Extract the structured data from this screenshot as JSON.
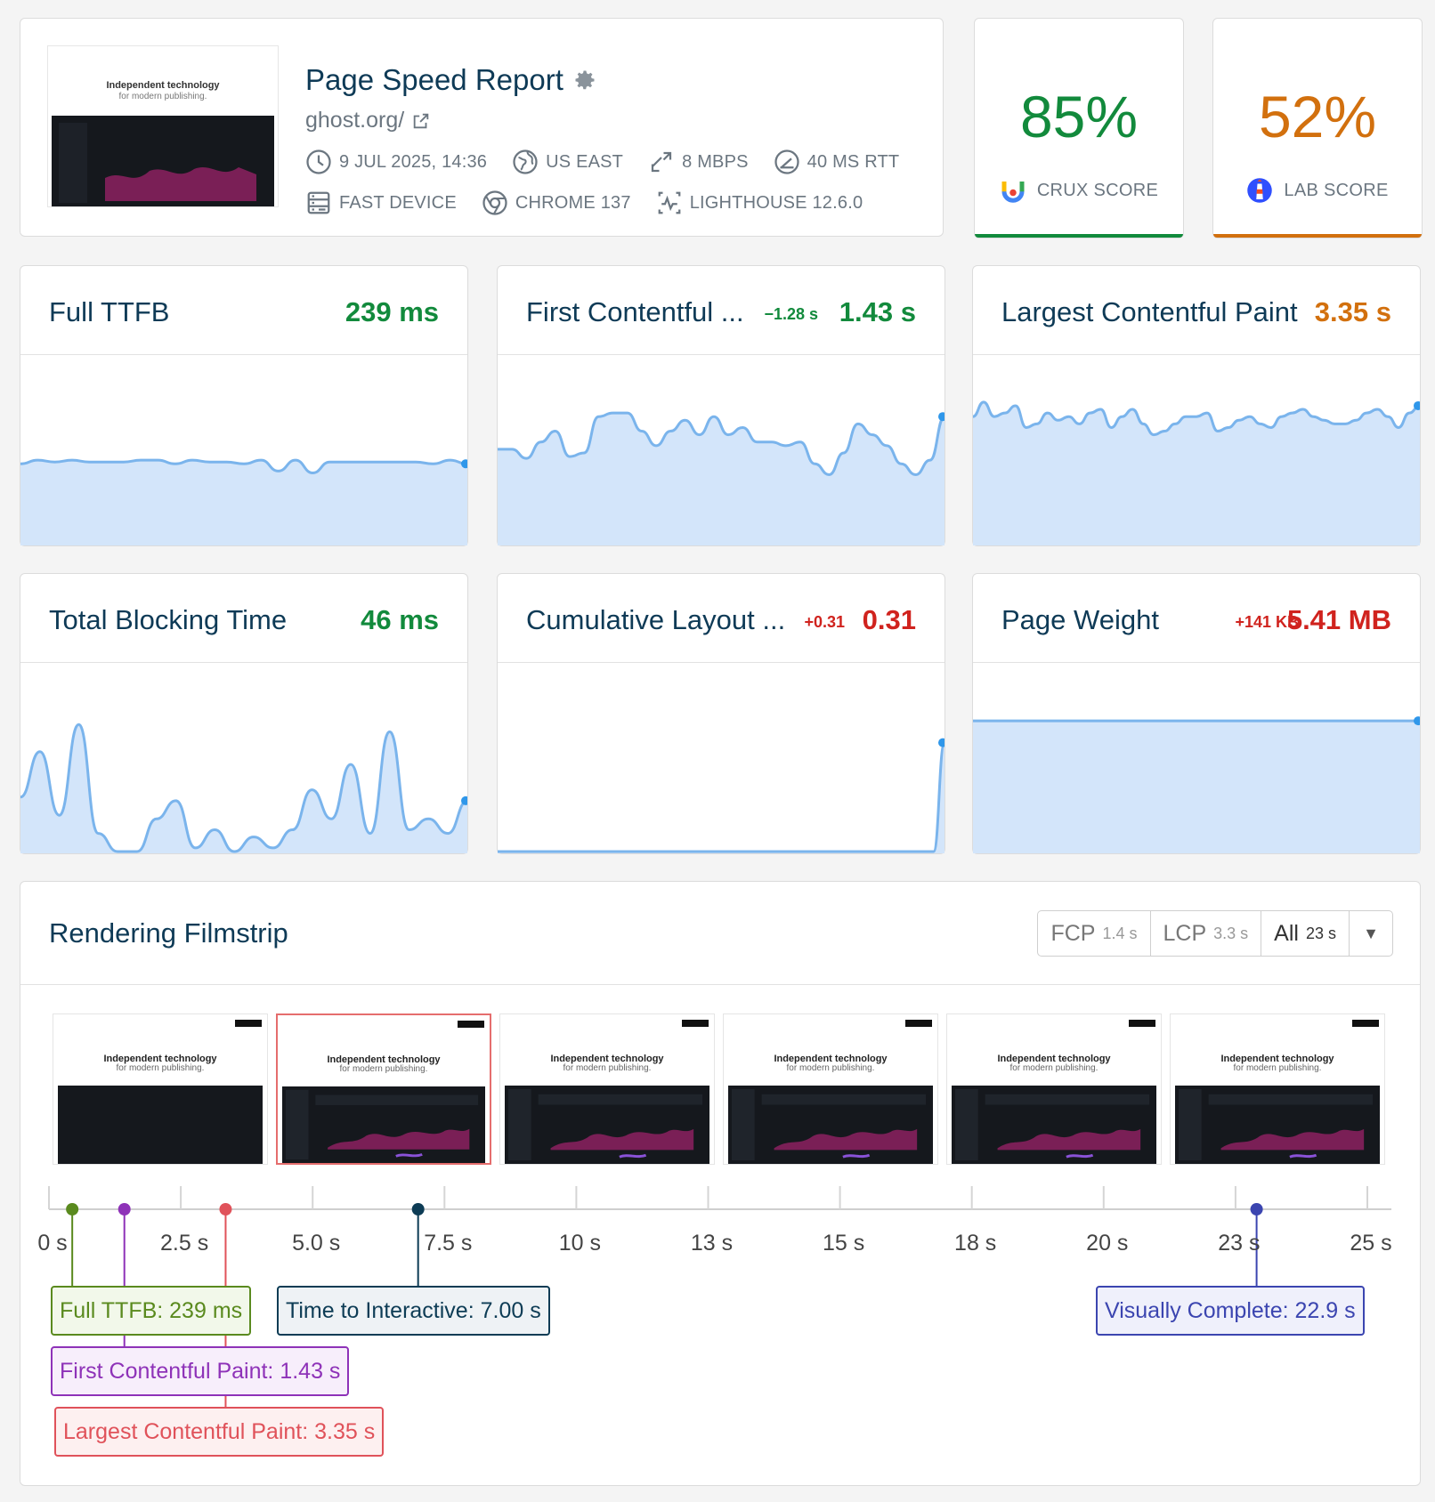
{
  "header": {
    "thumbnail": {
      "line1": "Independent technology",
      "line2": "for modern publishing."
    },
    "title": "Page Speed Report",
    "url": "ghost.org/",
    "meta": [
      {
        "icon": "clock-icon",
        "label": "9 JUL 2025, 14:36"
      },
      {
        "icon": "globe-icon",
        "label": "US EAST"
      },
      {
        "icon": "bandwidth-icon",
        "label": "8 MBPS"
      },
      {
        "icon": "latency-icon",
        "label": "40 MS RTT"
      },
      {
        "icon": "server-icon",
        "label": "FAST DEVICE"
      },
      {
        "icon": "chrome-icon",
        "label": "CHROME 137"
      },
      {
        "icon": "lighthouse-icon",
        "label": "LIGHTHOUSE 12.6.0"
      }
    ]
  },
  "scores": {
    "crux": {
      "value": "85%",
      "label": "CRUX SCORE",
      "color": "#128a3c"
    },
    "lab": {
      "value": "52%",
      "label": "LAB SCORE",
      "color": "#d2700e"
    }
  },
  "metrics": [
    {
      "name": "Full TTFB",
      "value": "239 ms",
      "delta": "",
      "value_color": "#128a3c",
      "delta_color": "",
      "trend": [
        44,
        46,
        45,
        46,
        45,
        45,
        45,
        46,
        46,
        44,
        46,
        45,
        45,
        44,
        46,
        40,
        46,
        39,
        45,
        45,
        45,
        45,
        45,
        45,
        44,
        46,
        44
      ]
    },
    {
      "name": "First Contentful ...",
      "value": "1.43 s",
      "delta": "−1.28 s",
      "value_color": "#128a3c",
      "delta_color": "#128a3c",
      "trend": [
        52,
        52,
        47,
        56,
        62,
        48,
        50,
        70,
        72,
        72,
        62,
        54,
        62,
        68,
        60,
        70,
        60,
        64,
        56,
        56,
        54,
        56,
        44,
        38,
        50,
        66,
        60,
        54,
        44,
        38,
        46,
        70
      ]
    },
    {
      "name": "Largest Contentful Paint",
      "value": "3.35 s",
      "delta": "",
      "value_color": "#d2700e",
      "delta_color": "",
      "trend": [
        70,
        78,
        70,
        72,
        76,
        64,
        66,
        72,
        68,
        70,
        66,
        72,
        74,
        64,
        70,
        74,
        66,
        60,
        62,
        66,
        70,
        70,
        72,
        62,
        64,
        68,
        70,
        66,
        64,
        70,
        72,
        74,
        70,
        68,
        66,
        66,
        68,
        72,
        74,
        70,
        64,
        72,
        76
      ]
    },
    {
      "name": "Total Blocking Time",
      "value": "46 ms",
      "delta": "",
      "value_color": "#128a3c",
      "delta_color": "",
      "trend": [
        30,
        55,
        20,
        70,
        10,
        0,
        0,
        18,
        28,
        2,
        12,
        0,
        8,
        2,
        12,
        34,
        18,
        48,
        10,
        66,
        12,
        18,
        10,
        28
      ]
    },
    {
      "name": "Cumulative Layout ...",
      "value": "0.31",
      "delta": "+0.31",
      "value_color": "#d0231e",
      "delta_color": "#d0231e",
      "trend": [
        0,
        0,
        0,
        0,
        0,
        0,
        0,
        0,
        0,
        0,
        0,
        0,
        0,
        0,
        0,
        0,
        0,
        0,
        0,
        0,
        0,
        0,
        0,
        0,
        0,
        0,
        0,
        0,
        0,
        0,
        0,
        0,
        0,
        0,
        0,
        0,
        0,
        0,
        0,
        0,
        0,
        60
      ]
    },
    {
      "name": "Page Weight",
      "value": "5.41 MB",
      "delta": "+141 KB",
      "value_color": "#d0231e",
      "delta_color": "#d0231e",
      "trend": [
        72,
        72,
        72,
        72,
        72,
        72,
        72,
        72,
        72,
        72,
        72,
        72,
        72,
        72,
        72,
        72,
        72,
        72,
        72,
        72,
        72,
        72,
        72,
        72,
        72,
        72,
        72,
        72,
        72
      ]
    }
  ],
  "filmstrip": {
    "title": "Rendering Filmstrip",
    "filters": [
      {
        "label": "FCP",
        "value": "1.4 s",
        "active": false
      },
      {
        "label": "LCP",
        "value": "3.3 s",
        "active": false
      },
      {
        "label": "All",
        "value": "23 s",
        "active": true
      }
    ],
    "frame_heading": "Independent technology",
    "frame_subheading": "for modern publishing.",
    "frames": [
      {
        "t": 0,
        "dashboard": false,
        "highlighted": false
      },
      {
        "t": 1.43,
        "dashboard": true,
        "highlighted": true
      },
      {
        "t": 3.3,
        "dashboard": true,
        "highlighted": false
      },
      {
        "t": 7,
        "dashboard": true,
        "highlighted": false
      },
      {
        "t": 15,
        "dashboard": true,
        "highlighted": false
      },
      {
        "t": 22.9,
        "dashboard": true,
        "highlighted": false
      }
    ],
    "ticks": [
      "0 s",
      "2.5 s",
      "5.0 s",
      "7.5 s",
      "10 s",
      "13 s",
      "15 s",
      "18 s",
      "20 s",
      "23 s",
      "25 s"
    ],
    "markers": [
      {
        "label": "Full TTFB: 239 ms",
        "t": 0.239,
        "color": "#5a8a1e",
        "bg": "#f2f8ea",
        "row": 0
      },
      {
        "label": "First Contentful Paint: 1.43 s",
        "t": 1.43,
        "color": "#8e32b8",
        "bg": "#f7eefb",
        "row": 1
      },
      {
        "label": "Largest Contentful Paint: 3.35 s",
        "t": 3.35,
        "color": "#e0525a",
        "bg": "#fdf0f0",
        "row": 2
      },
      {
        "label": "Time to Interactive: 7.00 s",
        "t": 7.0,
        "color": "#0d3c55",
        "bg": "#eef2f5",
        "row": 0
      },
      {
        "label": "Visually Complete: 22.9 s",
        "t": 22.9,
        "color": "#3b45b0",
        "bg": "#eff0fb",
        "row": 0
      }
    ]
  }
}
